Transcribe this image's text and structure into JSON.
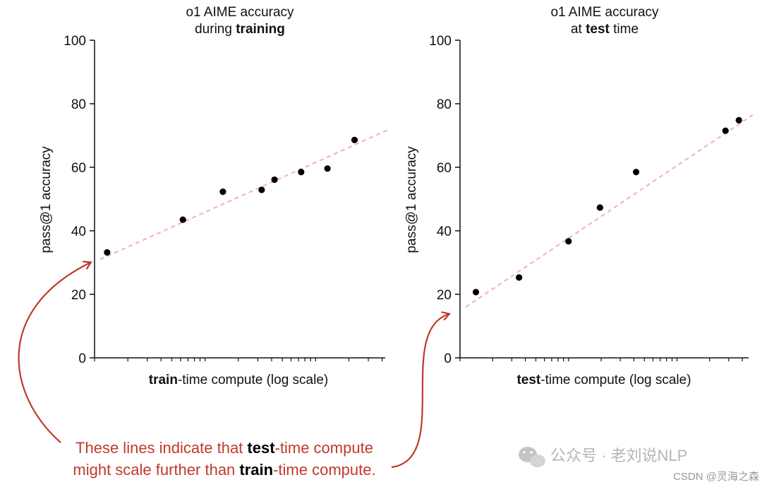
{
  "chart_data": [
    {
      "type": "scatter",
      "title_line1": "o1 AIME accuracy",
      "title_line2_pre": "during ",
      "title_line2_bold": "training",
      "title_line2_post": "",
      "xlabel_bold": "train",
      "xlabel_rest": "-time compute (log scale)",
      "ylabel": "pass@1 accuracy",
      "xscale": "log",
      "ylim": [
        0,
        100
      ],
      "yticks": [
        0,
        20,
        40,
        60,
        80,
        100
      ],
      "xlim_log10": [
        0,
        2.63
      ],
      "points": [
        {
          "x": 1.3,
          "y": 33.2
        },
        {
          "x": 6.3,
          "y": 43.5
        },
        {
          "x": 14.5,
          "y": 52.3
        },
        {
          "x": 32.5,
          "y": 52.9
        },
        {
          "x": 42.5,
          "y": 56.1
        },
        {
          "x": 74.0,
          "y": 58.5
        },
        {
          "x": 128.0,
          "y": 59.6
        },
        {
          "x": 225.0,
          "y": 68.6
        }
      ],
      "trend": {
        "y_start": 31.0,
        "y_end": 72.0
      },
      "trend_color": "#f4b6b6",
      "point_color": "#000000"
    },
    {
      "type": "scatter",
      "title_line1": "o1 AIME accuracy",
      "title_line2_pre": "at ",
      "title_line2_bold": "test",
      "title_line2_post": " time",
      "xlabel_bold": "test",
      "xlabel_rest": "-time compute (log scale)",
      "ylabel": "pass@1 accuracy",
      "xscale": "log",
      "ylim": [
        0,
        100
      ],
      "yticks": [
        0,
        20,
        40,
        60,
        80,
        100
      ],
      "xlim_log10": [
        0,
        2.66
      ],
      "points": [
        {
          "x": 1.4,
          "y": 20.7
        },
        {
          "x": 3.5,
          "y": 25.3
        },
        {
          "x": 10.0,
          "y": 36.7
        },
        {
          "x": 19.5,
          "y": 47.3
        },
        {
          "x": 42.0,
          "y": 58.5
        },
        {
          "x": 280.0,
          "y": 71.5
        },
        {
          "x": 372.0,
          "y": 74.8
        }
      ],
      "trend": {
        "y_start": 16.0,
        "y_end": 76.5
      },
      "trend_color": "#f4b6b6",
      "point_color": "#000000"
    }
  ],
  "annotation": {
    "line1_pre": "These lines indicate that ",
    "line1_bold": "test",
    "line1_post": "-time compute",
    "line2_pre": "might scale further than ",
    "line2_bold": "train",
    "line2_post": "-time compute.",
    "color": "#c0392b"
  },
  "watermark": {
    "main": "公众号 · 老刘说NLP",
    "sub": "CSDN @灵海之森"
  }
}
